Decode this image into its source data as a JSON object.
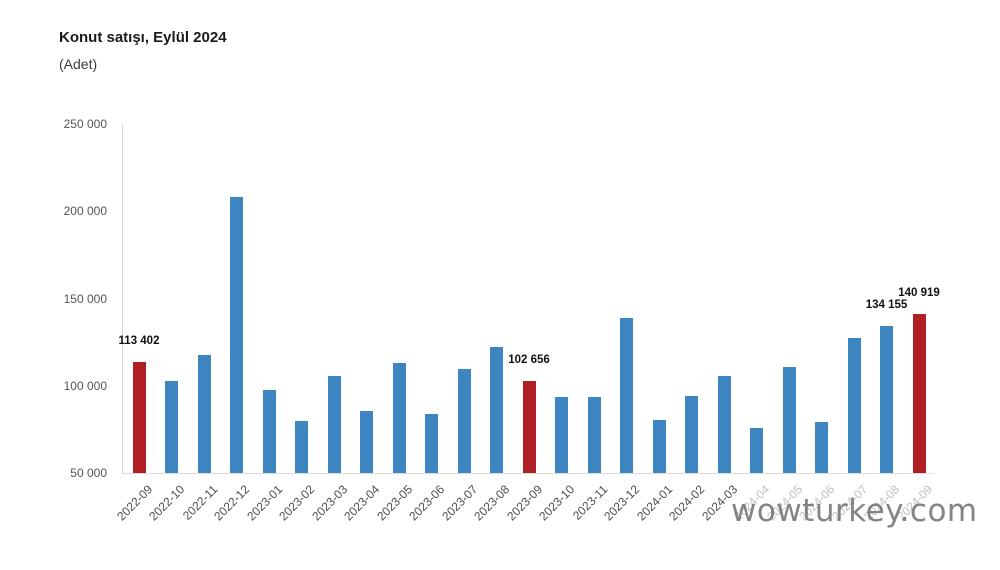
{
  "header": {
    "title": "Konut satışı, Eylül 2024",
    "subtitle": "(Adet)"
  },
  "watermark": "wowturkey.com",
  "chart_data": {
    "type": "bar",
    "title": "Konut satışı, Eylül 2024",
    "unit_label": "(Adet)",
    "categories": [
      "2022-09",
      "2022-10",
      "2022-11",
      "2022-12",
      "2023-01",
      "2023-02",
      "2023-03",
      "2023-04",
      "2023-05",
      "2023-06",
      "2023-07",
      "2023-08",
      "2023-09",
      "2023-10",
      "2023-11",
      "2023-12",
      "2024-01",
      "2024-02",
      "2024-03",
      "2024-04",
      "2024-05",
      "2024-06",
      "2024-07",
      "2024-08",
      "2024-09"
    ],
    "values": [
      113402,
      102660,
      117806,
      207963,
      97708,
      80031,
      105476,
      85652,
      113219,
      83636,
      109548,
      122091,
      102656,
      93761,
      93514,
      138577,
      80308,
      93954,
      105394,
      75569,
      110588,
      79313,
      127088,
      134155,
      140919
    ],
    "highlight_indices": [
      0,
      12,
      24
    ],
    "point_labels": [
      {
        "index": 0,
        "text": "113 402"
      },
      {
        "index": 12,
        "text": "102 656"
      },
      {
        "index": 23,
        "text": "134 155"
      },
      {
        "index": 24,
        "text": "140 919"
      }
    ],
    "ylim": [
      50000,
      250000
    ],
    "ytick_labels": [
      "50 000",
      "100 000",
      "150 000",
      "200 000",
      "250 000"
    ],
    "colors": {
      "bar": "#3e86c1",
      "highlight": "#b01f24"
    },
    "grid": false,
    "legend": "none",
    "xlabel": "",
    "ylabel": ""
  }
}
